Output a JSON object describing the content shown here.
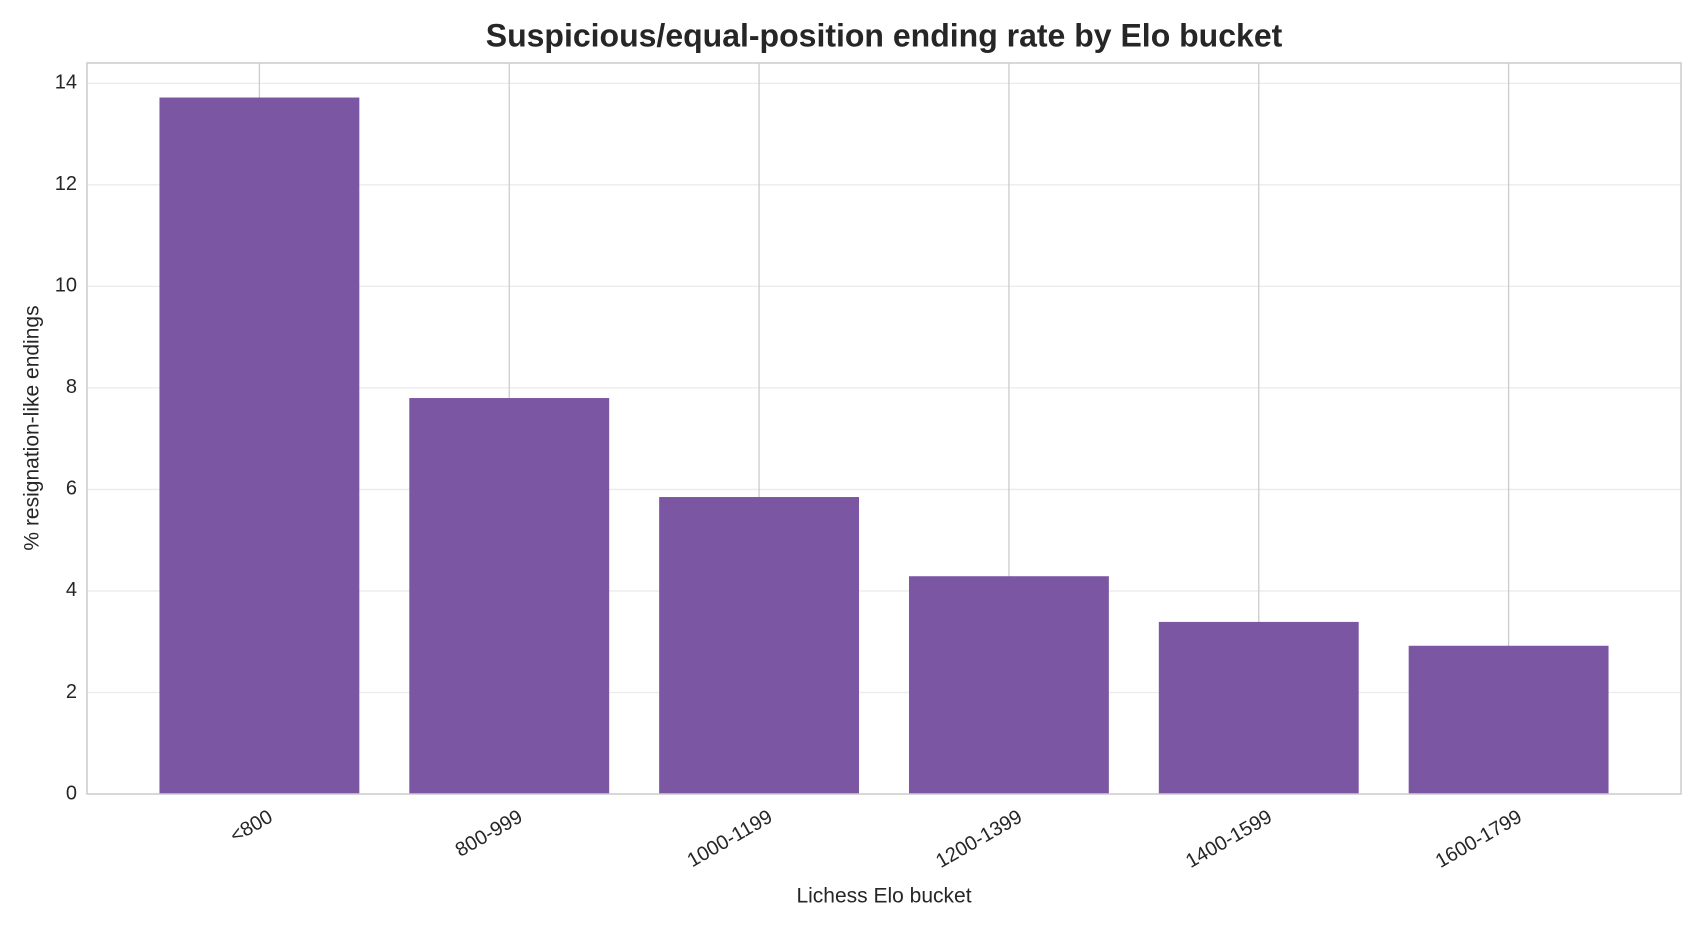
{
  "chart_data": {
    "type": "bar",
    "title": "Suspicious/equal-position ending rate by Elo bucket",
    "x_label": "Lichess Elo bucket",
    "y_label": "% resignation-like endings",
    "categories": [
      "<800",
      "800-999",
      "1000-1199",
      "1200-1399",
      "1400-1599",
      "1600-1799"
    ],
    "values": [
      13.72,
      7.8,
      5.85,
      4.29,
      3.39,
      2.92
    ],
    "color": "#7b57a3",
    "ylim": [
      0,
      14.4
    ],
    "yticks": [
      0,
      2,
      4,
      6,
      8,
      10,
      12,
      14
    ],
    "grid": true
  }
}
